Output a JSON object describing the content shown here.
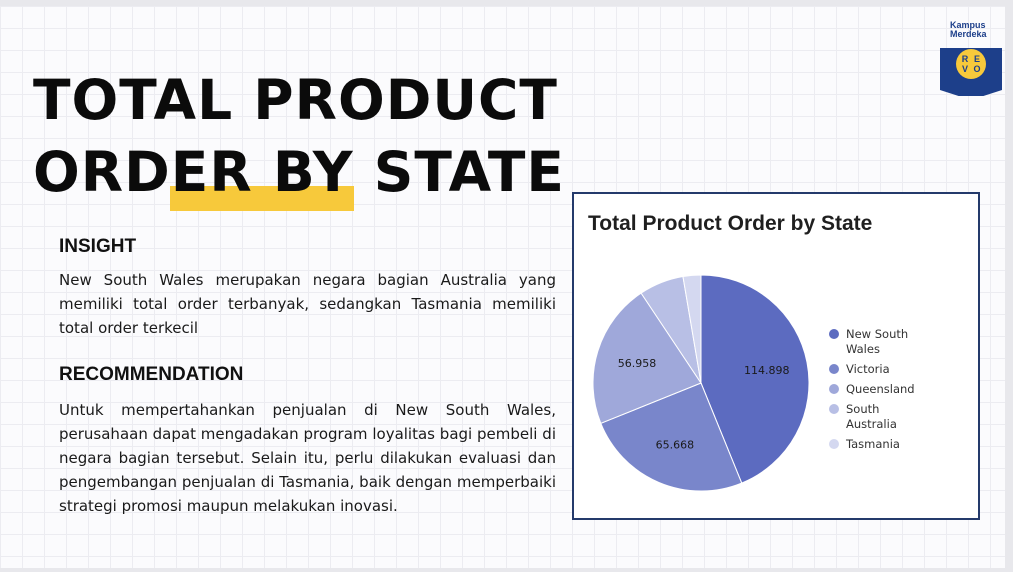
{
  "slide": {
    "title_line1": "TOTAL PRODUCT",
    "title_line2": "ORDER BY STATE",
    "insight_heading": "INSIGHT",
    "insight_text": "New South Wales merupakan negara bagian Australia yang memiliki total order terbanyak, sedangkan Tasmania memiliki total order terkecil",
    "recommendation_heading": "RECOMMENDATION",
    "recommendation_text": "Untuk mempertahankan penjualan di New South Wales, perusahaan dapat mengadakan program loyalitas bagi pembeli di negara bagian tersebut. Selain itu, perlu dilakukan evaluasi dan pengembangan penjualan di Tasmania, baik dengan memperbaiki strategi promosi maupun melakukan inovasi.",
    "accent_color": "#f7c93b"
  },
  "logo": {
    "text_line1": "Kampus",
    "text_line2": "Merdeka",
    "badge_letters": [
      "R",
      "E",
      "V",
      "O"
    ],
    "badge_color": "#1d3f8a",
    "circle_color": "#f7c93b"
  },
  "chart_data": {
    "type": "pie",
    "title": "Total Product Order by State",
    "legend_position": "right",
    "slices": [
      {
        "label": "New South Wales",
        "value": 114898,
        "display": "114.898",
        "color": "#5c6bc0"
      },
      {
        "label": "Victoria",
        "value": 65668,
        "display": "65.668",
        "color": "#7986cb"
      },
      {
        "label": "Queensland",
        "value": 56958,
        "display": "56.958",
        "color": "#9fa8da"
      },
      {
        "label": "South Australia",
        "value": 17500,
        "display": "",
        "color": "#b8bfe5"
      },
      {
        "label": "Tasmania",
        "value": 7000,
        "display": "",
        "color": "#d4d8f0"
      }
    ]
  }
}
